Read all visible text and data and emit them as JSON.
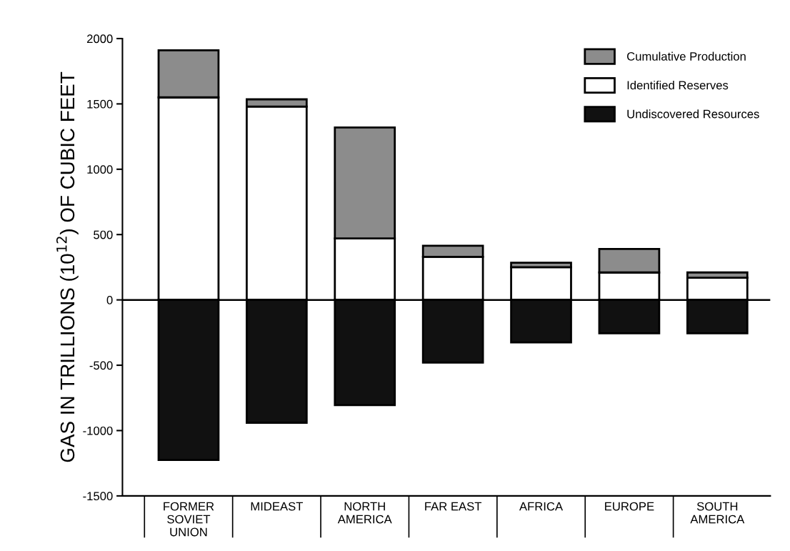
{
  "chart_data": {
    "type": "bar",
    "stacked": true,
    "ylabel": "GAS IN TRILLIONS (10$^{12}$) OF CUBIC FEET",
    "categories": [
      "FORMER\nSOVIET\nUNION",
      "MIDEAST",
      "NORTH\nAMERICA",
      "FAR EAST",
      "AFRICA",
      "EUROPE",
      "SOUTH\nAMERICA"
    ],
    "series": [
      {
        "name": "Identified Reserves",
        "color": "#ffffff",
        "values": [
          1550,
          1480,
          470,
          330,
          250,
          210,
          170
        ]
      },
      {
        "name": "Cumulative Production",
        "color": "#8c8c8c",
        "values": [
          360,
          55,
          850,
          85,
          35,
          180,
          40
        ]
      },
      {
        "name": "Undiscovered Resources",
        "color": "#111111",
        "values": [
          -1225,
          -940,
          -805,
          -480,
          -325,
          -255,
          -255
        ]
      }
    ],
    "ylim": [
      -1500,
      2000
    ],
    "yticks": [
      -1500,
      -1000,
      -500,
      0,
      500,
      1000,
      1500,
      2000
    ],
    "ref_lines": [
      {
        "axis": "y",
        "value": 0,
        "color": "#000000"
      }
    ],
    "grid": false,
    "legend": "top right"
  }
}
